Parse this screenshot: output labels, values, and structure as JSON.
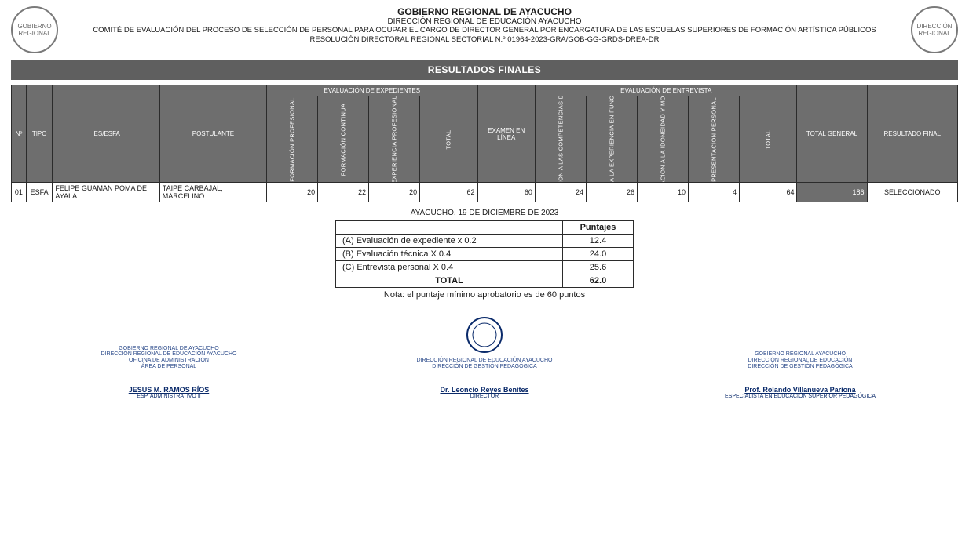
{
  "header": {
    "title": "GOBIERNO REGIONAL DE AYACUCHO",
    "sub1": "DIRECCIÓN REGIONAL DE EDUCACIÓN AYACUCHO",
    "sub2": "COMITÉ DE EVALUACIÓN DEL PROCESO DE SELECCIÓN DE PERSONAL PARA OCUPAR EL CARGO DE DIRECTOR GENERAL POR ENCARGATURA DE LAS ESCUELAS SUPERIORES DE FORMACIÓN ARTÍSTICA PÚBLICOS",
    "sub3": "RESOLUCIÓN DIRECTORAL REGIONAL SECTORIAL N.º 01964-2023-GRA/GOB-GG-GRDS-DREA-DR",
    "seal_left": "GOBIERNO REGIONAL",
    "seal_right": "DIRECCIÓN REGIONAL"
  },
  "title_bar": "RESULTADOS FINALES",
  "columns": {
    "n": "Nº",
    "tipo": "TIPO",
    "ies": "IES/ESFA",
    "postulante": "POSTULANTE",
    "group_exp": "EVALUACIÓN DE EXPEDIENTES",
    "group_ent": "EVALUACIÓN DE ENTREVISTA",
    "exp1": "FORMACIÓN PROFESIONAL",
    "exp2": "FORMACIÓN CONTINUA",
    "exp3": "EXPERIENCIA PROFESIONAL",
    "exp_tot": "TOTAL",
    "examen": "EXAMEN EN LÍNEA",
    "ent1": "CON RELACIÓN A LAS COMPETENCIAS DEL PUESTO",
    "ent2": "CON RELACIÓN A LA EXPERIENCIA EN FUNCIÓN AL PUESTO",
    "ent3": "CON RELACIÓN A LA IDONEIDAD Y MOTIVACIÓN",
    "ent4": "PRESENTACIÓN PERSONAL",
    "ent_tot": "TOTAL",
    "total_general": "TOTAL GENERAL",
    "resultado": "RESULTADO FINAL"
  },
  "row": {
    "n": "01",
    "tipo": "ESFA",
    "ies": "FELIPE GUAMAN POMA DE AYALA",
    "postulante": "TAIPE CARBAJAL, MARCELINO",
    "exp1": "20",
    "exp2": "22",
    "exp3": "20",
    "exp_tot": "62",
    "examen": "60",
    "ent1": "24",
    "ent2": "26",
    "ent3": "10",
    "ent4": "4",
    "ent_tot": "64",
    "total_general": "186",
    "resultado": "SELECCIONADO"
  },
  "date_line": "AYACUCHO, 19 DE DICIEMBRE DE 2023",
  "score_box": {
    "header_puntajes": "Puntajes",
    "rows": [
      {
        "label": "(A) Evaluación de expediente x 0.2",
        "value": "12.4"
      },
      {
        "label": "(B) Evaluación técnica X 0.4",
        "value": "24.0"
      },
      {
        "label": "(C) Entrevista personal X 0.4",
        "value": "25.6"
      }
    ],
    "total_label": "TOTAL",
    "total_value": "62.0",
    "nota": "Nota: el puntaje mínimo aprobatorio es de 60 puntos"
  },
  "signatures": {
    "left": {
      "org": "GOBIERNO REGIONAL DE AYACUCHO\nDIRECCIÓN REGIONAL DE EDUCACIÓN AYACUCHO\nOFICINA DE ADMINISTRACIÓN\nÁREA DE PERSONAL",
      "name": "JESUS M. RAMOS RÍOS",
      "role": "ESP. ADMINISTRATIVO II"
    },
    "center": {
      "org": "DIRECCIÓN REGIONAL DE EDUCACIÓN AYACUCHO\nDIRECCIÓN DE GESTIÓN PEDAGÓGICA",
      "name": "Dr. Leoncio Reyes Benites",
      "role": "DIRECTOR"
    },
    "right": {
      "org": "GOBIERNO REGIONAL AYACUCHO\nDIRECCIÓN REGIONAL DE EDUCACIÓN\nDIRECCIÓN DE GESTIÓN PEDAGÓGICA",
      "name": "Prof. Rolando Villanueva Pariona",
      "role": "ESPECIALISTA EN EDUCACIÓN SUPERIOR PEDAGÓGICA"
    }
  },
  "colors": {
    "header_bg": "#6e6e6e",
    "title_bg": "#5f5f5f",
    "border": "#2b2b2b",
    "sig": "#0a2a6a"
  }
}
